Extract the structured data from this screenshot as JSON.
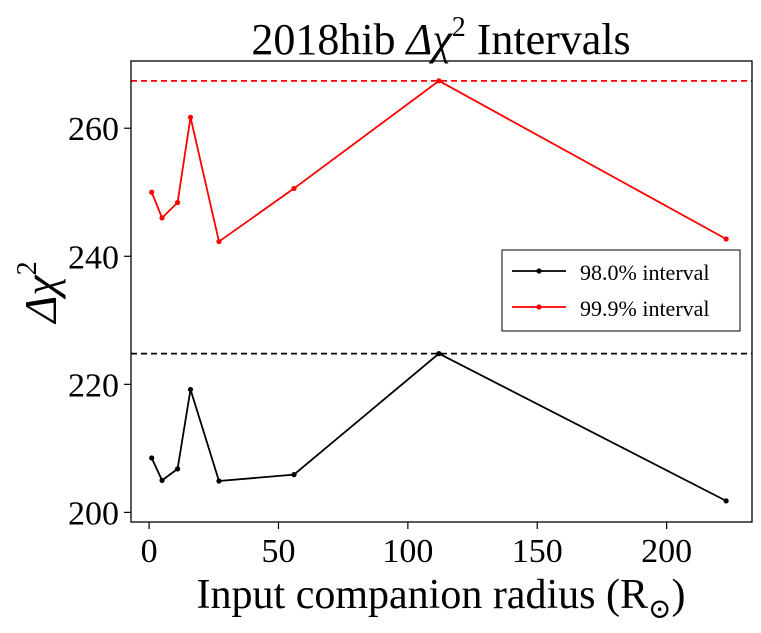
{
  "chart_data": {
    "type": "line",
    "title_prefix": "2018hib ",
    "title_symbol": "Δχ",
    "title_exponent": "2",
    "title_suffix": " Intervals",
    "xlabel_prefix": "Input companion radius (R",
    "xlabel_subscript": "⊙",
    "xlabel_suffix": ")",
    "ylabel_symbol": "Δχ",
    "ylabel_exponent": "2",
    "xlim": [
      -7,
      233
    ],
    "ylim": [
      198.5,
      270.5
    ],
    "xticks": [
      0,
      50,
      100,
      150,
      200
    ],
    "yticks": [
      200,
      220,
      240,
      260
    ],
    "grid": false,
    "legend_position": "center-right",
    "x": [
      1,
      5,
      11,
      16,
      27,
      56,
      112,
      223
    ],
    "series": [
      {
        "name": "98.0% interval",
        "color": "#000000",
        "values": [
          208.5,
          205.0,
          206.8,
          219.2,
          204.9,
          205.9,
          224.8,
          201.8
        ],
        "threshold": 224.8
      },
      {
        "name": "99.9% interval",
        "color": "#ff0000",
        "values": [
          250.0,
          246.0,
          248.4,
          261.7,
          242.3,
          250.6,
          267.4,
          242.7
        ],
        "threshold": 267.4
      }
    ]
  }
}
